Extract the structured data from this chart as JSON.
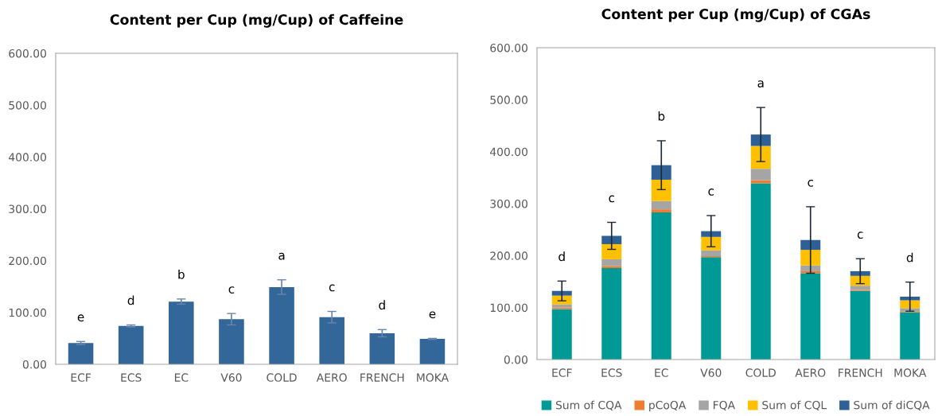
{
  "chart_data": [
    {
      "type": "bar",
      "title": "Content per Cup (mg/Cup) of Caffeine",
      "categories": [
        "ECF",
        "ECS",
        "EC",
        "V60",
        "COLD",
        "AERO",
        "FRENCH",
        "MOKA"
      ],
      "values": [
        41,
        74,
        121,
        87,
        149,
        91,
        60,
        49
      ],
      "errors": [
        3,
        2,
        5,
        11,
        14,
        11,
        7,
        1
      ],
      "color": "#336699",
      "ylim": [
        0,
        600
      ],
      "yticks": [
        {
          "value": 0,
          "label": "0.00"
        },
        {
          "value": 100,
          "label": "100.00"
        },
        {
          "value": 200,
          "label": "200.00"
        },
        {
          "value": 300,
          "label": "300.00"
        },
        {
          "value": 400,
          "label": "400.00"
        },
        {
          "value": 500,
          "label": "500.00"
        },
        {
          "value": 600,
          "label": "600.00"
        }
      ],
      "annotations": [
        "e",
        "d",
        "b",
        "c",
        "a",
        "c",
        "d",
        "e"
      ],
      "grid": false,
      "legend": false
    },
    {
      "type": "bar",
      "title": "Content per Cup (mg/Cup) of CGAs",
      "stacked": true,
      "categories": [
        "ECF",
        "ECS",
        "EC",
        "V60",
        "COLD",
        "AERO",
        "FRENCH",
        "MOKA"
      ],
      "series": [
        {
          "name": "Sum of CQA",
          "color": "#009a96",
          "values": [
            97,
            176,
            283,
            197,
            339,
            166,
            132,
            91
          ]
        },
        {
          "name": "pCoQA",
          "color": "#ed7d31",
          "values": [
            3,
            4,
            6,
            2,
            6,
            4,
            2,
            2
          ]
        },
        {
          "name": "FQA",
          "color": "#a5a5a5",
          "values": [
            6,
            13,
            16,
            11,
            22,
            11,
            8,
            6
          ]
        },
        {
          "name": "Sum of CQL",
          "color": "#ffc000",
          "values": [
            17,
            29,
            41,
            26,
            44,
            30,
            19,
            15
          ]
        },
        {
          "name": "Sum of diCQA",
          "color": "#2e6096",
          "values": [
            9,
            16,
            28,
            11,
            22,
            19,
            9,
            7
          ],
          "errors": [
            19,
            26,
            47,
            30,
            52,
            64,
            24,
            28
          ]
        }
      ],
      "ylim": [
        0,
        600
      ],
      "yticks": [
        {
          "value": 0,
          "label": "0.00"
        },
        {
          "value": 100,
          "label": "100.00"
        },
        {
          "value": 200,
          "label": "200.00"
        },
        {
          "value": 300,
          "label": "300.00"
        },
        {
          "value": 400,
          "label": "400.00"
        },
        {
          "value": 500,
          "label": "500.00"
        },
        {
          "value": 600,
          "label": "600.00"
        }
      ],
      "annotations": [
        "d",
        "c",
        "b",
        "c",
        "a",
        "c",
        "c",
        "d"
      ],
      "grid": false,
      "legend": "bottom"
    }
  ]
}
